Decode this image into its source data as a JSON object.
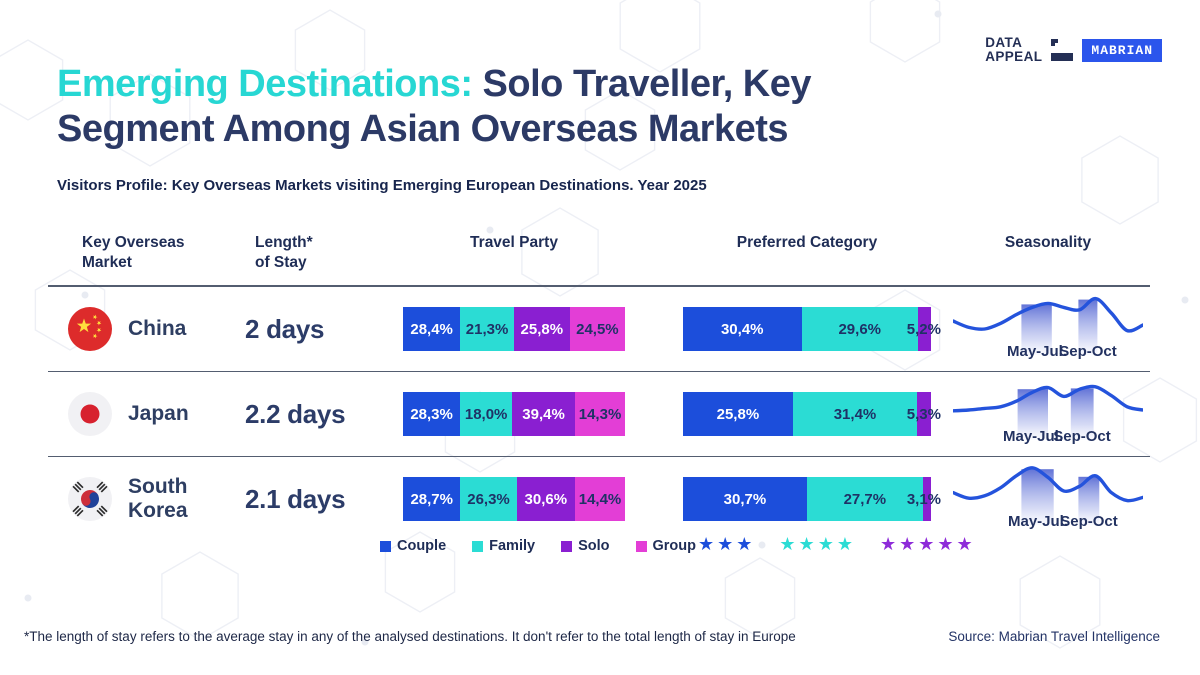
{
  "brand": {
    "logo_top": "DATA",
    "logo_bottom": "APPEAL",
    "badge": "MABRIAN",
    "badge_color": "#2b55ec"
  },
  "header": {
    "title_highlight": "Emerging Destinations:",
    "title_rest_line1": " Solo Traveller, Key",
    "title_line2": "Segment Among Asian Overseas Markets",
    "subtitle": "Visitors Profile: Key Overseas Markets visiting Emerging European Destinations. Year 2025"
  },
  "table_headers": {
    "market": "Key Overseas\nMarket",
    "length": "Length*\nof Stay",
    "travel": "Travel Party",
    "category": "Preferred Category",
    "seasonality": "Seasonality"
  },
  "legend": {
    "items": [
      {
        "label": "Couple",
        "color": "#1C4EDB"
      },
      {
        "label": "Family",
        "color": "#2BDCD4"
      },
      {
        "label": "Solo",
        "color": "#8A1FD1"
      },
      {
        "label": "Group",
        "color": "#E33ED6"
      }
    ]
  },
  "star_ratings": [
    {
      "stars": 3,
      "color": "#1C4EDB"
    },
    {
      "stars": 4,
      "color": "#2BDCD4"
    },
    {
      "stars": 5,
      "color": "#8E2BD9"
    }
  ],
  "footer": {
    "footnote": "*The length of stay refers to the average stay in any of the analysed destinations. It don't refer to the total length of stay in Europe",
    "source": "Source: Mabrian Travel Intelligence"
  },
  "chart_data": {
    "type": "table",
    "title": "Visitors Profile: Key Overseas Markets visiting Emerging European Destinations. Year 2025",
    "segment_colors": {
      "travel": [
        "#1C4EDB",
        "#2BDCD4",
        "#8A1FD1",
        "#E33ED6"
      ],
      "category": [
        "#1C4EDB",
        "#2BDCD4",
        "#8A1FD1"
      ]
    },
    "segment_text_colors": {
      "travel": [
        "#ffffff",
        "#1f3266",
        "#ffffff",
        "#1f3266"
      ],
      "category": [
        "#ffffff",
        "#1f3266",
        "#1f3266"
      ]
    },
    "line_color": "#2453DC",
    "rows": [
      {
        "market": "China",
        "length_of_stay": "2 days",
        "travel_party": [
          {
            "segment": "Couple",
            "value": 28.4,
            "label": "28,4%"
          },
          {
            "segment": "Family",
            "value": 21.3,
            "label": "21,3%"
          },
          {
            "segment": "Solo",
            "value": 25.8,
            "label": "25,8%"
          },
          {
            "segment": "Group",
            "value": 24.5,
            "label": "24,5%"
          }
        ],
        "preferred_category": [
          {
            "segment": "3 stars",
            "value": 30.4,
            "label": "30,4%"
          },
          {
            "segment": "4 stars",
            "value": 29.6,
            "label": "29,6%"
          },
          {
            "segment": "5 stars",
            "value": 5.2,
            "label": "5,2%"
          }
        ],
        "seasonality": {
          "points": [
            0.4,
            0.24,
            0.2,
            0.34,
            0.56,
            0.74,
            0.84,
            0.74,
            0.68,
            0.96,
            0.6,
            0.16,
            0.3
          ],
          "bands": [
            {
              "from": 0.36,
              "to": 0.52,
              "label": "May-Jul."
            },
            {
              "from": 0.66,
              "to": 0.76,
              "label": "Sep-Oct"
            }
          ]
        }
      },
      {
        "market": "Japan",
        "length_of_stay": "2.2 days",
        "travel_party": [
          {
            "segment": "Couple",
            "value": 28.3,
            "label": "28,3%"
          },
          {
            "segment": "Family",
            "value": 18.0,
            "label": "18,0%"
          },
          {
            "segment": "Solo",
            "value": 39.4,
            "label": "39,4%"
          },
          {
            "segment": "Group",
            "value": 14.3,
            "label": "14,3%"
          }
        ],
        "preferred_category": [
          {
            "segment": "3 stars",
            "value": 25.8,
            "label": "25,8%"
          },
          {
            "segment": "4 stars",
            "value": 31.4,
            "label": "31,4%"
          },
          {
            "segment": "5 stars",
            "value": 5.3,
            "label": "5,3%"
          }
        ],
        "seasonality": {
          "points": [
            0.28,
            0.3,
            0.34,
            0.38,
            0.52,
            0.74,
            0.86,
            0.64,
            0.82,
            0.88,
            0.66,
            0.38,
            0.3
          ],
          "bands": [
            {
              "from": 0.34,
              "to": 0.5,
              "label": "May-Jul."
            },
            {
              "from": 0.62,
              "to": 0.74,
              "label": "Sep-Oct"
            }
          ]
        }
      },
      {
        "market": "South Korea",
        "length_of_stay": "2.1 days",
        "travel_party": [
          {
            "segment": "Couple",
            "value": 28.7,
            "label": "28,7%"
          },
          {
            "segment": "Family",
            "value": 26.3,
            "label": "26,3%"
          },
          {
            "segment": "Solo",
            "value": 30.6,
            "label": "30,6%"
          },
          {
            "segment": "Group",
            "value": 14.4,
            "label": "14,4%"
          }
        ],
        "preferred_category": [
          {
            "segment": "3 stars",
            "value": 30.7,
            "label": "30,7%"
          },
          {
            "segment": "4 stars",
            "value": 27.7,
            "label": "27,7%"
          },
          {
            "segment": "5 stars",
            "value": 3.1,
            "label": "3,1%"
          }
        ],
        "seasonality": {
          "points": [
            0.36,
            0.22,
            0.28,
            0.48,
            0.78,
            0.98,
            0.74,
            0.4,
            0.52,
            0.78,
            0.36,
            0.16,
            0.24
          ],
          "bands": [
            {
              "from": 0.36,
              "to": 0.53,
              "label": "May-Jul."
            },
            {
              "from": 0.66,
              "to": 0.77,
              "label": "Sep-Oct"
            }
          ]
        }
      }
    ]
  }
}
